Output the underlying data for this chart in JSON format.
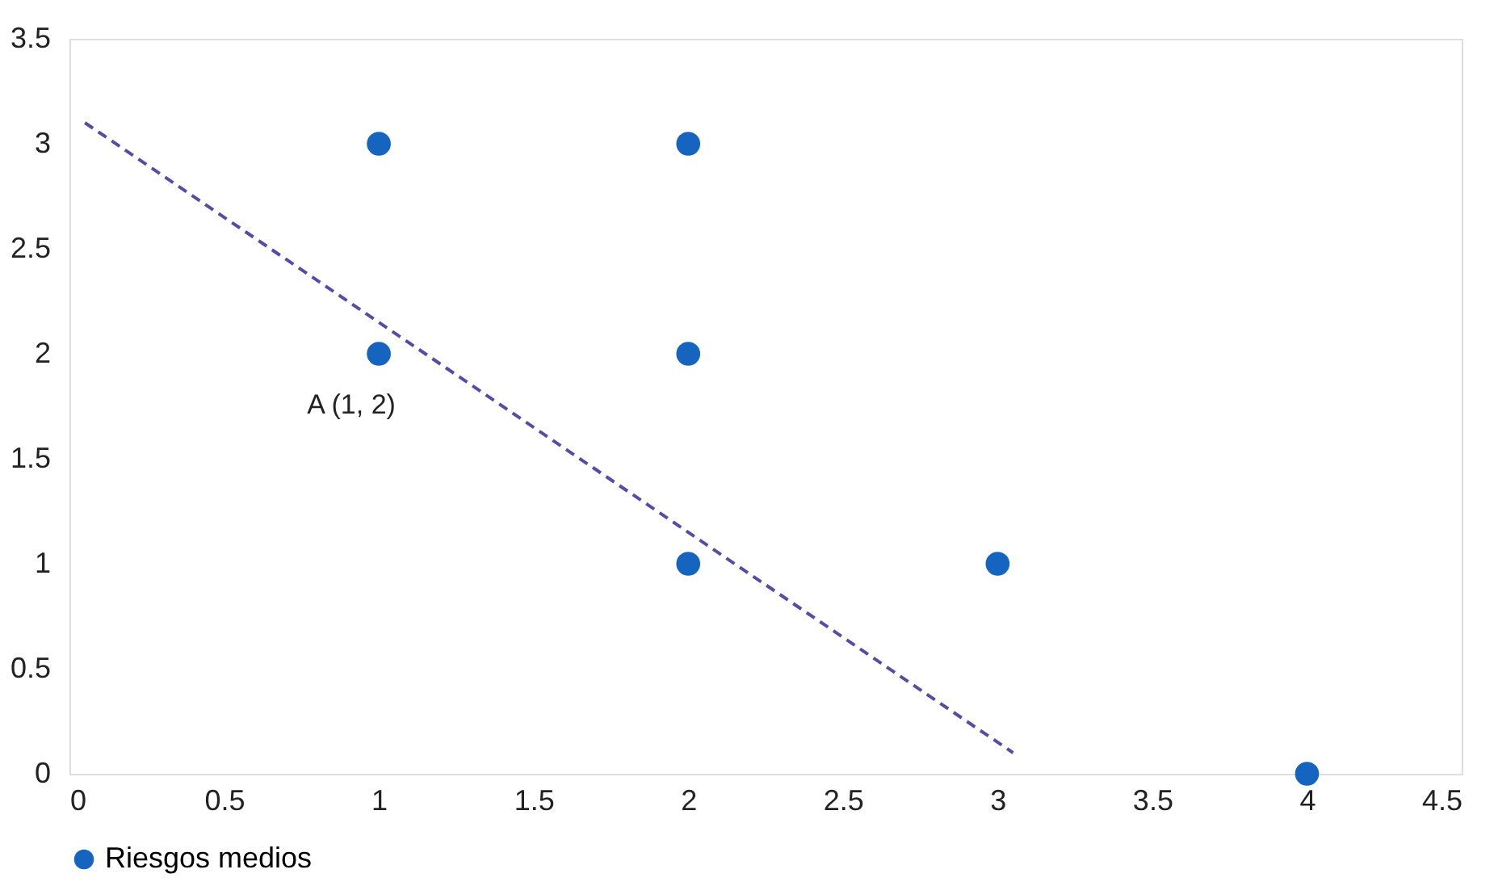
{
  "chart_data": {
    "type": "scatter",
    "xlim": [
      0,
      4.5
    ],
    "ylim": [
      0,
      3.5
    ],
    "xticks": [
      0,
      0.5,
      1,
      1.5,
      2,
      2.5,
      3,
      3.5,
      4,
      4.5
    ],
    "yticks": [
      0,
      0.5,
      1,
      1.5,
      2,
      2.5,
      3,
      3.5
    ],
    "grid": false,
    "legend": "bottom",
    "marker": "circle",
    "series": [
      {
        "name": "Riesgos medios",
        "color": "#1565c0",
        "x": [
          1,
          2,
          1,
          2,
          2,
          3,
          4
        ],
        "values": [
          3,
          3,
          2,
          2,
          1,
          1,
          0
        ]
      },
      {
        "type": "line",
        "color": "#5a4aa8",
        "line_style": "dashed",
        "marker": "none",
        "x": [
          0.05,
          3.05
        ],
        "values": [
          3.1,
          0.1
        ]
      }
    ],
    "annotations": [
      {
        "text": "A (1, 2)",
        "x": 1,
        "y": 2
      }
    ]
  }
}
